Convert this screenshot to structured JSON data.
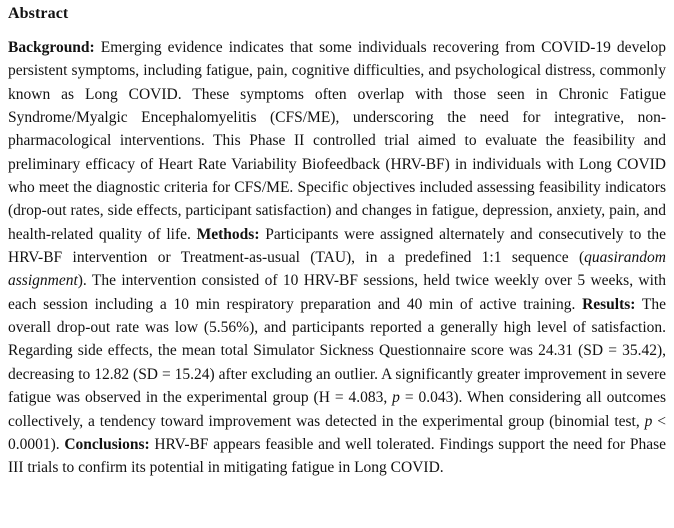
{
  "colors": {
    "background": "#ffffff",
    "text": "#121212"
  },
  "abstract": {
    "heading": "Abstract",
    "segments": [
      {
        "style": "bold",
        "text": "Background:"
      },
      {
        "style": "normal",
        "text": " Emerging evidence indicates that some individuals recovering from COVID-19 develop persistent symptoms, including fatigue, pain, cognitive difficulties, and psychological distress, commonly known as Long COVID. These symptoms often overlap with those seen in Chronic Fatigue Syndrome/Myalgic Encephalomyelitis (CFS/ME), underscoring the need for integrative, non-pharmacological interventions. This Phase II controlled trial aimed to evaluate the feasibility and preliminary efficacy of Heart Rate Variability Biofeedback (HRV-BF) in individuals with Long COVID who meet the diagnostic criteria for CFS/ME. Specific objectives included assessing feasibility indicators (drop-out rates, side effects, participant satisfaction) and changes in fatigue, depression, anxiety, pain, and health-related quality of life. "
      },
      {
        "style": "bold",
        "text": "Methods:"
      },
      {
        "style": "normal",
        "text": " Participants were assigned alternately and consecutively to the HRV-BF intervention or Treatment-as-usual (TAU), in a predefined 1:1 sequence ("
      },
      {
        "style": "italic",
        "text": "quasirandom assignment"
      },
      {
        "style": "normal",
        "text": "). The intervention consisted of 10 HRV-BF sessions, held twice weekly over 5 weeks, with each session including a 10 min respiratory preparation and 40 min of active training. "
      },
      {
        "style": "bold",
        "text": "Results:"
      },
      {
        "style": "normal",
        "text": " The overall drop-out rate was low (5.56%), and participants reported a generally high level of satisfaction. Regarding side effects, the mean total Simulator Sickness Questionnaire score was 24.31 (SD = 35.42), decreasing to 12.82 (SD = 15.24) after excluding an outlier. A significantly greater improvement in severe fatigue was observed in the experimental group (H = 4.083, "
      },
      {
        "style": "italic",
        "text": "p"
      },
      {
        "style": "normal",
        "text": " = 0.043). When considering all outcomes collectively, a tendency toward improvement was detected in the experimental group (binomial test, "
      },
      {
        "style": "italic",
        "text": "p"
      },
      {
        "style": "normal",
        "text": " < 0.0001). "
      },
      {
        "style": "bold",
        "text": "Conclusions:"
      },
      {
        "style": "normal",
        "text": " HRV-BF appears feasible and well tolerated. Findings support the need for Phase III trials to confirm its potential in mitigating fatigue in Long COVID."
      }
    ]
  }
}
